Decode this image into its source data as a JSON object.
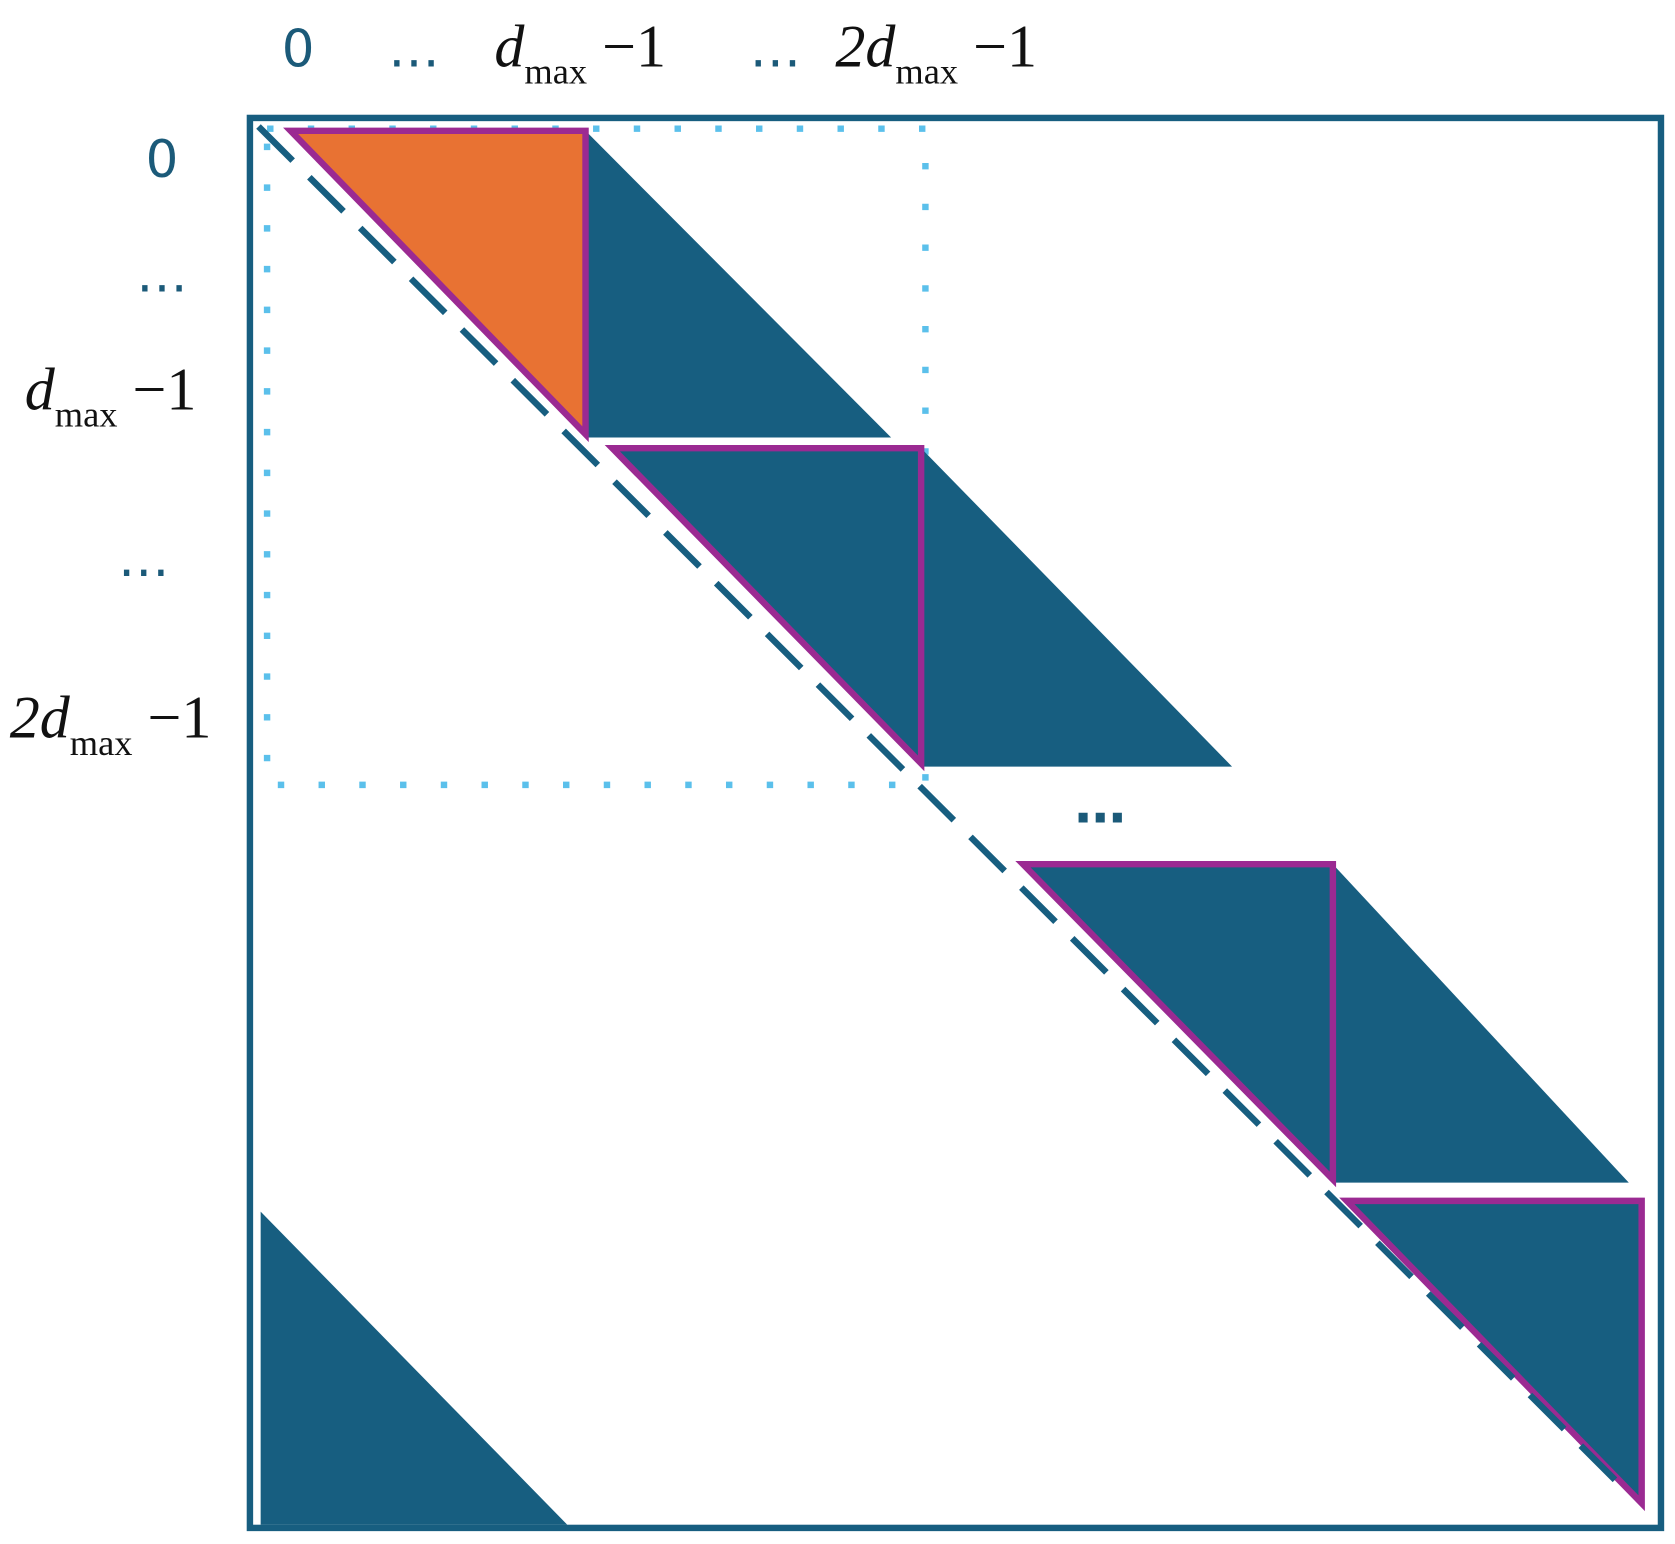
{
  "column_labels": [
    "0",
    "…",
    {
      "main": "d",
      "sub": "max",
      "tail": "−1"
    },
    "…",
    {
      "main": "2d",
      "sub": "max",
      "tail": "−1"
    }
  ],
  "row_labels": [
    "0",
    "…",
    {
      "main": "d",
      "sub": "max",
      "tail": "−1"
    },
    "…",
    {
      "main": "2d",
      "sub": "max",
      "tail": "−1"
    }
  ],
  "middle_ellipsis": "…"
}
